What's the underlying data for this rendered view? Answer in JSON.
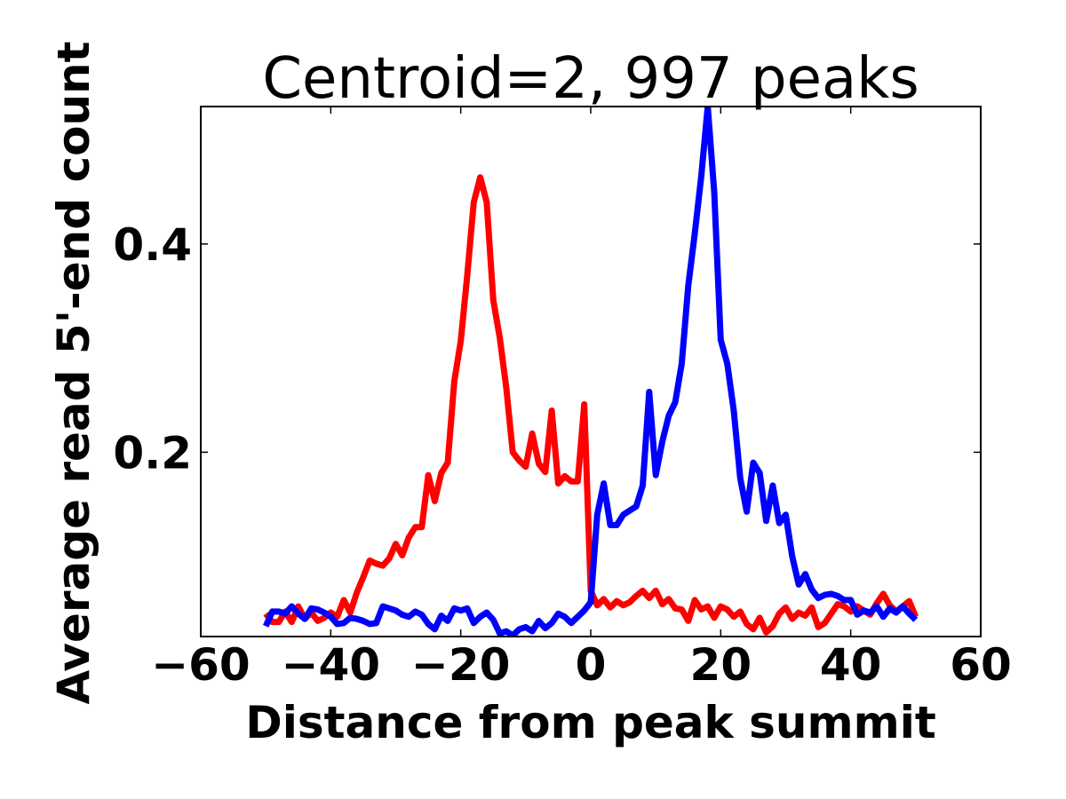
{
  "chart_data": {
    "type": "line",
    "title": "Centroid=2, 997 peaks",
    "xlabel": "Distance from peak summit",
    "ylabel": "Average read 5'-end count",
    "xlim": [
      -60,
      60
    ],
    "ylim": [
      0.023,
      0.532
    ],
    "xticks": [
      -60,
      -40,
      -20,
      0,
      20,
      40,
      60
    ],
    "xtick_labels": [
      "−60",
      "−40",
      "−20",
      "0",
      "20",
      "40",
      "60"
    ],
    "yticks": [
      0.2,
      0.4
    ],
    "ytick_labels": [
      "0.2",
      "0.4"
    ],
    "grid": false,
    "series": [
      {
        "color": "#ff0000",
        "x": [
          -50,
          -49,
          -48,
          -47,
          -46,
          -45,
          -44,
          -43,
          -42,
          -41,
          -40,
          -39,
          -38,
          -37,
          -36,
          -35,
          -34,
          -33,
          -32,
          -31,
          -30,
          -29,
          -28,
          -27,
          -26,
          -25,
          -24,
          -23,
          -22,
          -21,
          -20,
          -19,
          -18,
          -17,
          -16,
          -15,
          -14,
          -13,
          -12,
          -11,
          -10,
          -9,
          -8,
          -7,
          -6,
          -5,
          -4,
          -3,
          -2,
          -1,
          0,
          1,
          2,
          3,
          4,
          5,
          6,
          7,
          8,
          9,
          10,
          11,
          12,
          13,
          14,
          15,
          16,
          17,
          18,
          19,
          20,
          21,
          22,
          23,
          24,
          25,
          26,
          27,
          28,
          29,
          30,
          31,
          32,
          33,
          34,
          35,
          36,
          37,
          38,
          39,
          40,
          41,
          42,
          43,
          44,
          45,
          46,
          47,
          48,
          49,
          50
        ],
        "values": [
          0.045,
          0.037,
          0.037,
          0.047,
          0.037,
          0.052,
          0.04,
          0.046,
          0.038,
          0.041,
          0.046,
          0.042,
          0.058,
          0.046,
          0.065,
          0.08,
          0.096,
          0.093,
          0.091,
          0.098,
          0.112,
          0.101,
          0.118,
          0.128,
          0.128,
          0.178,
          0.153,
          0.18,
          0.19,
          0.268,
          0.307,
          0.37,
          0.44,
          0.464,
          0.44,
          0.346,
          0.31,
          0.262,
          0.2,
          0.192,
          0.186,
          0.218,
          0.189,
          0.181,
          0.24,
          0.17,
          0.177,
          0.172,
          0.172,
          0.246,
          0.067,
          0.053,
          0.059,
          0.051,
          0.057,
          0.053,
          0.056,
          0.062,
          0.067,
          0.06,
          0.067,
          0.054,
          0.059,
          0.05,
          0.049,
          0.038,
          0.058,
          0.049,
          0.052,
          0.041,
          0.052,
          0.049,
          0.042,
          0.047,
          0.035,
          0.03,
          0.041,
          0.027,
          0.033,
          0.045,
          0.051,
          0.04,
          0.046,
          0.043,
          0.051,
          0.032,
          0.036,
          0.045,
          0.054,
          0.052,
          0.047,
          0.052,
          0.048,
          0.044,
          0.055,
          0.064,
          0.053,
          0.047,
          0.052,
          0.057,
          0.042
        ]
      },
      {
        "color": "#0000ff",
        "x": [
          -50,
          -49,
          -48,
          -47,
          -46,
          -45,
          -44,
          -43,
          -42,
          -41,
          -40,
          -39,
          -38,
          -37,
          -36,
          -35,
          -34,
          -33,
          -32,
          -31,
          -30,
          -29,
          -28,
          -27,
          -26,
          -25,
          -24,
          -23,
          -22,
          -21,
          -20,
          -19,
          -18,
          -17,
          -16,
          -15,
          -14,
          -13,
          -12,
          -11,
          -10,
          -9,
          -8,
          -7,
          -6,
          -5,
          -4,
          -3,
          -2,
          -1,
          0,
          1,
          2,
          3,
          4,
          5,
          6,
          7,
          8,
          9,
          10,
          11,
          12,
          13,
          14,
          15,
          16,
          17,
          18,
          19,
          20,
          21,
          22,
          23,
          24,
          25,
          26,
          27,
          28,
          29,
          30,
          31,
          32,
          33,
          34,
          35,
          36,
          37,
          38,
          39,
          40,
          41,
          42,
          43,
          44,
          45,
          46,
          47,
          48,
          49,
          50
        ],
        "values": [
          0.033,
          0.047,
          0.047,
          0.045,
          0.052,
          0.045,
          0.04,
          0.05,
          0.049,
          0.046,
          0.042,
          0.035,
          0.036,
          0.041,
          0.04,
          0.038,
          0.035,
          0.036,
          0.052,
          0.05,
          0.048,
          0.044,
          0.042,
          0.047,
          0.044,
          0.035,
          0.03,
          0.043,
          0.038,
          0.05,
          0.048,
          0.05,
          0.036,
          0.042,
          0.046,
          0.039,
          0.026,
          0.028,
          0.024,
          0.03,
          0.032,
          0.028,
          0.038,
          0.031,
          0.036,
          0.045,
          0.042,
          0.036,
          0.042,
          0.048,
          0.056,
          0.14,
          0.17,
          0.13,
          0.13,
          0.14,
          0.144,
          0.148,
          0.168,
          0.258,
          0.178,
          0.21,
          0.235,
          0.248,
          0.285,
          0.36,
          0.41,
          0.465,
          0.532,
          0.45,
          0.308,
          0.285,
          0.24,
          0.175,
          0.143,
          0.19,
          0.18,
          0.134,
          0.168,
          0.132,
          0.14,
          0.1,
          0.073,
          0.083,
          0.068,
          0.06,
          0.063,
          0.064,
          0.062,
          0.058,
          0.058,
          0.044,
          0.048,
          0.046,
          0.052,
          0.042,
          0.05,
          0.046,
          0.052,
          0.045,
          0.039
        ]
      }
    ]
  }
}
